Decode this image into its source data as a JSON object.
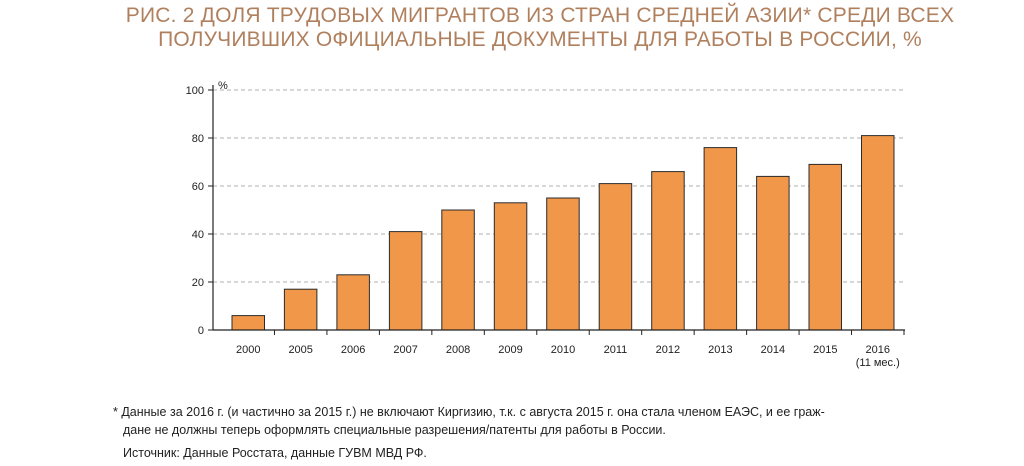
{
  "colors": {
    "title": "#b0805e",
    "bar": "#f0974a",
    "bar_stroke": "#2b2b2b",
    "grid": "#999999",
    "axis": "#222222"
  },
  "chart_data": {
    "type": "bar",
    "title": "РИС. 2 ДОЛЯ ТРУДОВЫХ МИГРАНТОВ ИЗ СТРАН СРЕДНЕЙ АЗИИ* СРЕДИ ВСЕХ ПОЛУЧИВШИХ ОФИЦИАЛЬНЫЕ ДОКУМЕНТЫ ДЛЯ РАБОТЫ В РОССИИ, %",
    "title_lines": [
      "РИС. 2 ДОЛЯ ТРУДОВЫХ МИГРАНТОВ ИЗ СТРАН СРЕДНЕЙ АЗИИ* СРЕДИ ВСЕХ",
      "ПОЛУЧИВШИХ ОФИЦИАЛЬНЫЕ ДОКУМЕНТЫ ДЛЯ РАБОТЫ В РОССИИ, %"
    ],
    "categories": [
      "2000",
      "2005",
      "2006",
      "2007",
      "2008",
      "2009",
      "2010",
      "2011",
      "2012",
      "2013",
      "2014",
      "2015",
      "2016"
    ],
    "category_notes": [
      "",
      "",
      "",
      "",
      "",
      "",
      "",
      "",
      "",
      "",
      "",
      "",
      "(11 мес.)"
    ],
    "values": [
      6,
      17,
      23,
      41,
      50,
      53,
      55,
      61,
      66,
      76,
      64,
      69,
      81
    ],
    "ylabel": "%",
    "xlabel": "",
    "ylim": [
      0,
      100
    ],
    "yticks": [
      0,
      20,
      40,
      60,
      80,
      100
    ],
    "grid": true
  },
  "footnotes": {
    "note_line1": "* Данные за 2016 г. (и частично за 2015 г.) не включают Киргизию, т.к. с августа 2015 г. она стала членом ЕАЭС, и ее граж-",
    "note_line2": "дане не должны теперь оформлять специальные разрешения/патенты для работы в России.",
    "source": "Источник: Данные Росстата, данные ГУВМ МВД РФ."
  }
}
